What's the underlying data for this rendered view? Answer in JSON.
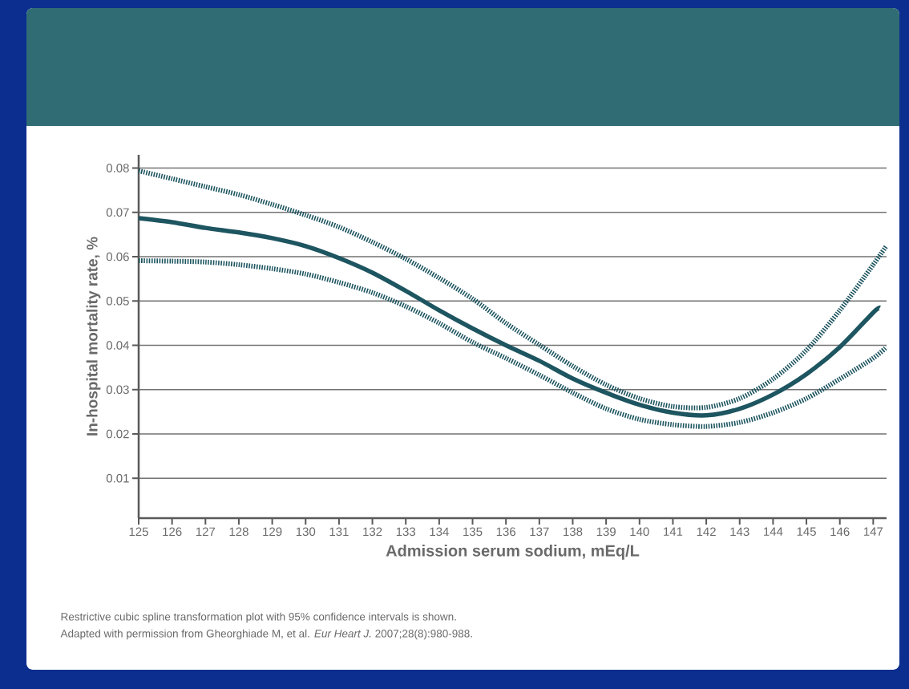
{
  "chart_data": {
    "type": "line",
    "xlabel": "Admission serum sodium, mEq/L",
    "ylabel": "In-hospital mortality rate, %",
    "xlim": [
      125,
      147.4
    ],
    "xticks": [
      125,
      126,
      127,
      128,
      129,
      130,
      131,
      132,
      133,
      134,
      135,
      136,
      137,
      138,
      139,
      140,
      141,
      142,
      143,
      144,
      145,
      146,
      147
    ],
    "ylim": [
      0.001,
      0.083
    ],
    "yticks": [
      0.01,
      0.02,
      0.03,
      0.04,
      0.05,
      0.06,
      0.07,
      0.08
    ],
    "grid": "y",
    "series": [
      {
        "color": "#1d5560",
        "line_style": "dotted",
        "x": [
          125,
          126,
          127,
          128,
          129,
          130,
          131,
          132,
          133,
          134,
          135,
          136,
          137,
          138,
          139,
          140,
          141,
          142,
          143,
          144,
          145,
          146,
          147,
          147.4
        ],
        "values": [
          0.0794,
          0.0776,
          0.0758,
          0.074,
          0.0718,
          0.0694,
          0.0667,
          0.0633,
          0.0595,
          0.0552,
          0.0505,
          0.045,
          0.0401,
          0.0353,
          0.0311,
          0.028,
          0.0262,
          0.026,
          0.028,
          0.0324,
          0.0389,
          0.0479,
          0.0582,
          0.0625
        ]
      },
      {
        "color": "#1d5560",
        "line_style": "solid",
        "x": [
          125,
          126,
          127,
          128,
          129,
          130,
          131,
          132,
          133,
          134,
          135,
          136,
          137,
          138,
          139,
          140,
          141,
          142,
          143,
          144,
          145,
          146,
          147,
          147.2
        ],
        "values": [
          0.0687,
          0.0678,
          0.0665,
          0.0655,
          0.0642,
          0.0624,
          0.0597,
          0.0564,
          0.0523,
          0.0479,
          0.0438,
          0.04,
          0.0365,
          0.0325,
          0.0293,
          0.0266,
          0.0248,
          0.0242,
          0.0257,
          0.0289,
          0.0335,
          0.0396,
          0.0474,
          0.0485
        ]
      },
      {
        "color": "#1d5560",
        "line_style": "dotted",
        "x": [
          125,
          126,
          127,
          128,
          129,
          130,
          131,
          132,
          133,
          134,
          135,
          136,
          137,
          138,
          139,
          140,
          141,
          142,
          143,
          144,
          145,
          146,
          147,
          147.4
        ],
        "values": [
          0.0591,
          0.059,
          0.0588,
          0.0582,
          0.0573,
          0.0561,
          0.0542,
          0.0519,
          0.0488,
          0.045,
          0.0407,
          0.0371,
          0.0333,
          0.0293,
          0.0257,
          0.0233,
          0.0221,
          0.0217,
          0.0226,
          0.0248,
          0.028,
          0.0324,
          0.0371,
          0.0396
        ]
      }
    ],
    "annotations": [
      "Restrictive cubic spline transformation plot with 95% confidence intervals is shown.",
      "Adapted with permission from Gheorghiade M, et al. *Eur Heart J.* 2007;28(8):980-988."
    ]
  }
}
